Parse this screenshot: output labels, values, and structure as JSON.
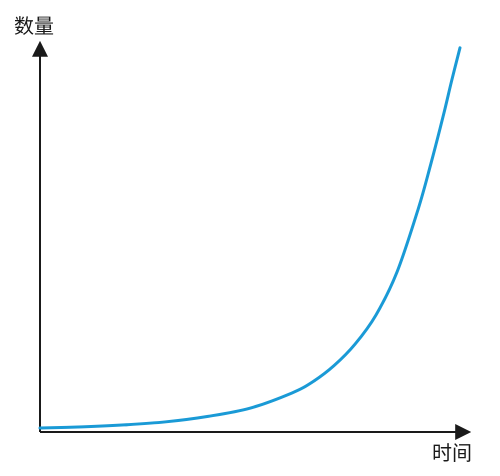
{
  "chart_data": {
    "type": "line",
    "title": "",
    "xlabel": "时间",
    "ylabel": "数量",
    "grid": false,
    "legend": "none",
    "x_ticks": [],
    "y_ticks": [],
    "xlim": [
      0,
      10
    ],
    "ylim": [
      0,
      100
    ],
    "series": [
      {
        "color": "#1a9ad6",
        "x": [
          0,
          1,
          2,
          3,
          4,
          5,
          6,
          6.5,
          7,
          7.5,
          8,
          8.5,
          9,
          9.3,
          9.6,
          9.8,
          10
        ],
        "y": [
          0.5,
          0.8,
          1.3,
          2.1,
          3.5,
          5.6,
          9.5,
          12.4,
          16.5,
          22,
          29.5,
          40.5,
          56.5,
          68,
          80.5,
          89.5,
          98
        ]
      }
    ],
    "axis_color": "#1a1a1a"
  }
}
